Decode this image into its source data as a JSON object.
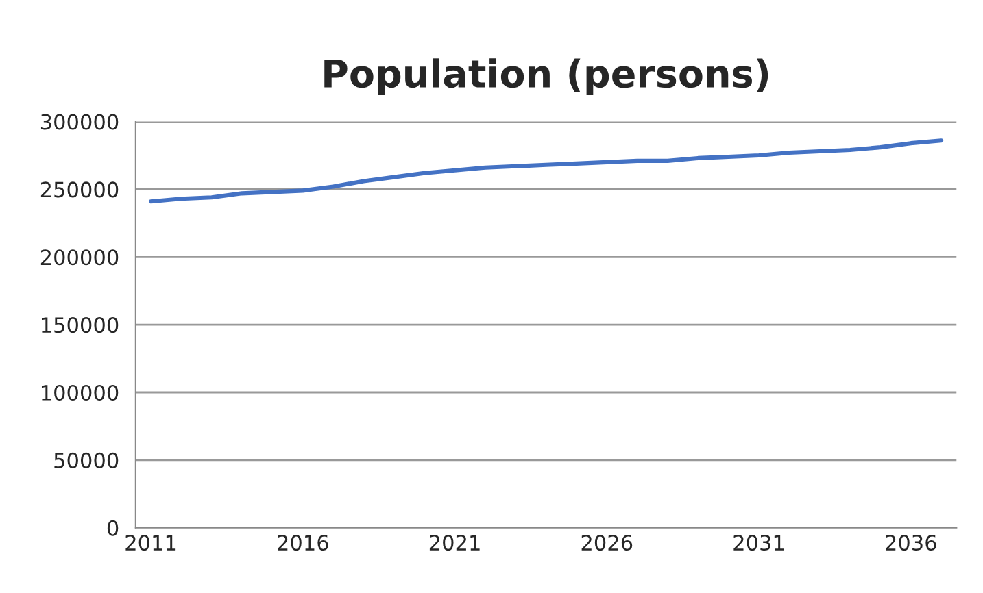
{
  "chart_data": {
    "type": "line",
    "title": "Population (persons)",
    "categories": [
      "2011",
      null,
      null,
      null,
      null,
      "2016",
      null,
      null,
      null,
      null,
      "2021",
      null,
      null,
      null,
      null,
      "2026",
      null,
      null,
      null,
      null,
      "2031",
      null,
      null,
      null,
      null,
      "2036",
      null
    ],
    "series": [
      {
        "color": "#4472c4",
        "values": [
          241000,
          243000,
          244000,
          247000,
          248000,
          249000,
          252000,
          256000,
          259000,
          262000,
          264000,
          266000,
          267000,
          268000,
          269000,
          270000,
          271000,
          271000,
          273000,
          274000,
          275000,
          277000,
          278000,
          279000,
          281000,
          284000,
          286000
        ]
      }
    ],
    "ylim": [
      0,
      300000
    ],
    "yticks": [
      0,
      50000,
      100000,
      150000,
      200000,
      250000,
      300000
    ],
    "grid": "y",
    "marker": "none",
    "line_style": "solid"
  }
}
